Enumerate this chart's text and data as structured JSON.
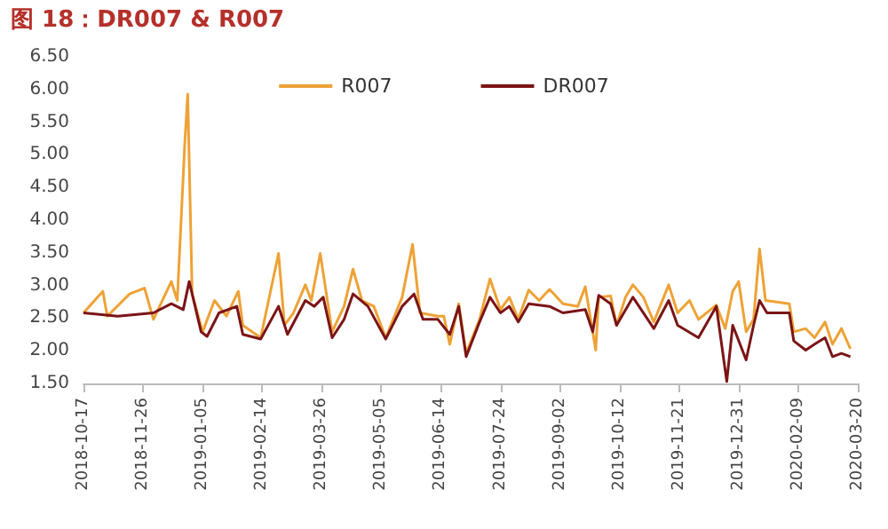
{
  "chart_data": {
    "type": "line",
    "title": "图 18：DR007 & R007",
    "xlim": [
      "2018-10-17",
      "2020-03-20"
    ],
    "xticks": [
      "2018-10-17",
      "2018-11-26",
      "2019-01-05",
      "2019-02-14",
      "2019-03-26",
      "2019-05-05",
      "2019-06-14",
      "2019-07-24",
      "2019-09-02",
      "2019-10-12",
      "2019-11-21",
      "2019-12-31",
      "2020-02-09",
      "2020-03-20"
    ],
    "ylim": [
      1.5,
      6.5
    ],
    "yticks": [
      {
        "value": 1.5,
        "label": "1.50"
      },
      {
        "value": 2,
        "label": "2.00"
      },
      {
        "value": 2.5,
        "label": "2.50"
      },
      {
        "value": 3,
        "label": "3.00"
      },
      {
        "value": 3.5,
        "label": "3.50"
      },
      {
        "value": 4,
        "label": "4.00"
      },
      {
        "value": 4.5,
        "label": "4.50"
      },
      {
        "value": 5,
        "label": "5.00"
      },
      {
        "value": 5.5,
        "label": "5.50"
      },
      {
        "value": 6,
        "label": "6.00"
      },
      {
        "value": 6.5,
        "label": "6.50"
      }
    ],
    "grid": false,
    "legend": "top",
    "marker": "none",
    "line_style": "solid",
    "series": [
      {
        "name": "R007",
        "color": "#eea236",
        "x": [
          "2018-10-17",
          "2018-10-30",
          "2018-11-02",
          "2018-11-17",
          "2018-11-27",
          "2018-12-03",
          "2018-12-15",
          "2018-12-19",
          "2018-12-24",
          "2018-12-26",
          "2018-12-29",
          "2019-01-05",
          "2019-01-13",
          "2019-01-21",
          "2019-01-29",
          "2019-02-01",
          "2019-02-13",
          "2019-02-25",
          "2019-03-01",
          "2019-03-07",
          "2019-03-15",
          "2019-03-19",
          "2019-03-25",
          "2019-04-02",
          "2019-04-10",
          "2019-04-16",
          "2019-04-22",
          "2019-04-30",
          "2019-05-08",
          "2019-05-19",
          "2019-05-26",
          "2019-05-31",
          "2019-06-12",
          "2019-06-16",
          "2019-06-20",
          "2019-06-26",
          "2019-07-01",
          "2019-07-10",
          "2019-07-17",
          "2019-07-24",
          "2019-07-30",
          "2019-08-05",
          "2019-08-12",
          "2019-08-19",
          "2019-08-26",
          "2019-09-04",
          "2019-09-14",
          "2019-09-19",
          "2019-09-26",
          "2019-09-28",
          "2019-10-06",
          "2019-10-10",
          "2019-10-16",
          "2019-10-21",
          "2019-10-28",
          "2019-11-04",
          "2019-11-14",
          "2019-11-20",
          "2019-11-28",
          "2019-12-04",
          "2019-12-16",
          "2019-12-22",
          "2019-12-27",
          "2019-12-31",
          "2020-01-05",
          "2020-01-10",
          "2020-01-14",
          "2020-01-18",
          "2020-02-03",
          "2020-02-06",
          "2020-02-14",
          "2020-02-20",
          "2020-02-27",
          "2020-03-03",
          "2020-03-09",
          "2020-03-15"
        ],
        "values": [
          2.58,
          2.91,
          2.53,
          2.87,
          2.96,
          2.48,
          3.06,
          2.77,
          5.16,
          5.93,
          2.87,
          2.29,
          2.77,
          2.53,
          2.91,
          2.39,
          2.2,
          3.49,
          2.39,
          2.58,
          3.01,
          2.77,
          3.49,
          2.29,
          2.68,
          3.25,
          2.77,
          2.68,
          2.2,
          2.82,
          3.63,
          2.58,
          2.53,
          2.53,
          2.1,
          2.72,
          1.96,
          2.48,
          3.1,
          2.63,
          2.82,
          2.48,
          2.93,
          2.77,
          2.94,
          2.72,
          2.68,
          2.98,
          2.01,
          2.82,
          2.84,
          2.39,
          2.82,
          3.01,
          2.82,
          2.44,
          3.01,
          2.58,
          2.77,
          2.48,
          2.7,
          2.34,
          2.91,
          3.06,
          2.29,
          2.48,
          3.56,
          2.77,
          2.72,
          2.29,
          2.34,
          2.2,
          2.44,
          2.1,
          2.34,
          2.03
        ]
      },
      {
        "name": "DR007",
        "color": "#7b1416",
        "x": [
          "2018-10-17",
          "2018-11-09",
          "2018-12-03",
          "2018-12-15",
          "2018-12-23",
          "2018-12-27",
          "2019-01-04",
          "2019-01-08",
          "2019-01-16",
          "2019-01-28",
          "2019-02-01",
          "2019-02-13",
          "2019-02-25",
          "2019-03-03",
          "2019-03-15",
          "2019-03-21",
          "2019-03-27",
          "2019-04-02",
          "2019-04-10",
          "2019-04-16",
          "2019-04-26",
          "2019-05-08",
          "2019-05-19",
          "2019-05-27",
          "2019-06-02",
          "2019-06-12",
          "2019-06-20",
          "2019-06-26",
          "2019-07-01",
          "2019-07-10",
          "2019-07-17",
          "2019-07-24",
          "2019-07-30",
          "2019-08-05",
          "2019-08-12",
          "2019-08-26",
          "2019-09-04",
          "2019-09-19",
          "2019-09-24",
          "2019-09-28",
          "2019-10-06",
          "2019-10-10",
          "2019-10-21",
          "2019-11-04",
          "2019-11-14",
          "2019-11-20",
          "2019-12-04",
          "2019-12-16",
          "2019-12-23",
          "2019-12-27",
          "2020-01-05",
          "2020-01-10",
          "2020-01-14",
          "2020-01-19",
          "2020-02-03",
          "2020-02-06",
          "2020-02-14",
          "2020-02-20",
          "2020-02-27",
          "2020-03-03",
          "2020-03-09",
          "2020-03-15"
        ],
        "values": [
          2.58,
          2.53,
          2.58,
          2.72,
          2.63,
          3.06,
          2.29,
          2.22,
          2.58,
          2.68,
          2.25,
          2.18,
          2.68,
          2.25,
          2.77,
          2.68,
          2.82,
          2.2,
          2.48,
          2.87,
          2.68,
          2.18,
          2.68,
          2.87,
          2.48,
          2.48,
          2.25,
          2.68,
          1.91,
          2.44,
          2.82,
          2.58,
          2.68,
          2.44,
          2.72,
          2.68,
          2.58,
          2.63,
          2.29,
          2.85,
          2.72,
          2.39,
          2.82,
          2.34,
          2.77,
          2.39,
          2.2,
          2.68,
          1.53,
          2.39,
          1.86,
          2.39,
          2.77,
          2.58,
          2.58,
          2.15,
          2.01,
          2.1,
          2.2,
          1.91,
          1.96,
          1.91
        ]
      }
    ]
  }
}
